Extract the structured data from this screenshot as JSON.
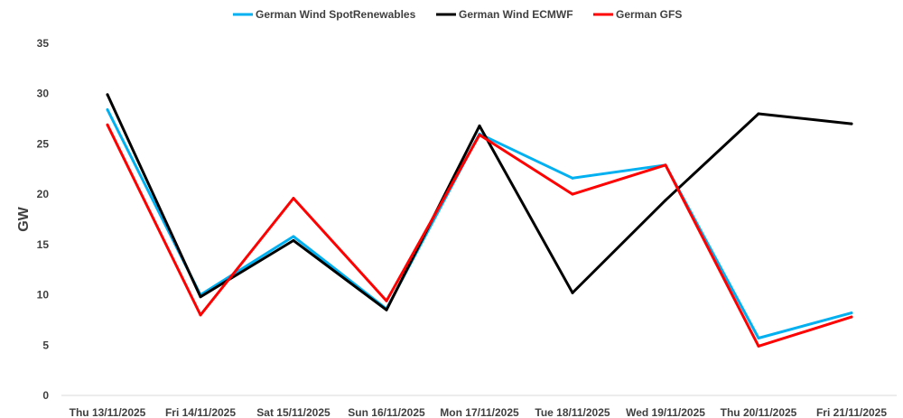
{
  "chart_data": {
    "type": "line",
    "title": "",
    "xlabel": "",
    "ylabel": "GW",
    "ylim": [
      0,
      35
    ],
    "yticks": [
      0,
      5,
      10,
      15,
      20,
      25,
      30,
      35
    ],
    "grid": false,
    "legend_position": "top",
    "categories": [
      "Thu 13/11/2025",
      "Fri 14/11/2025",
      "Sat 15/11/2025",
      "Sun 16/11/2025",
      "Mon 17/11/2025",
      "Tue 18/11/2025",
      "Wed 19/11/2025",
      "Thu 20/11/2025",
      "Fri 21/11/2025"
    ],
    "series": [
      {
        "name": "German Wind SpotRenewables",
        "color": "#00B0F0",
        "values": [
          28.4,
          10.0,
          15.8,
          8.6,
          26.0,
          21.6,
          22.9,
          5.7,
          8.2
        ]
      },
      {
        "name": "German Wind ECMWF",
        "color": "#000000",
        "values": [
          29.9,
          9.8,
          15.4,
          8.5,
          26.8,
          10.2,
          19.4,
          28.0,
          27.0
        ]
      },
      {
        "name": "German GFS",
        "color": "#FF0000",
        "values": [
          26.9,
          8.0,
          19.6,
          9.4,
          25.9,
          20.0,
          22.9,
          4.9,
          7.8
        ]
      }
    ]
  }
}
